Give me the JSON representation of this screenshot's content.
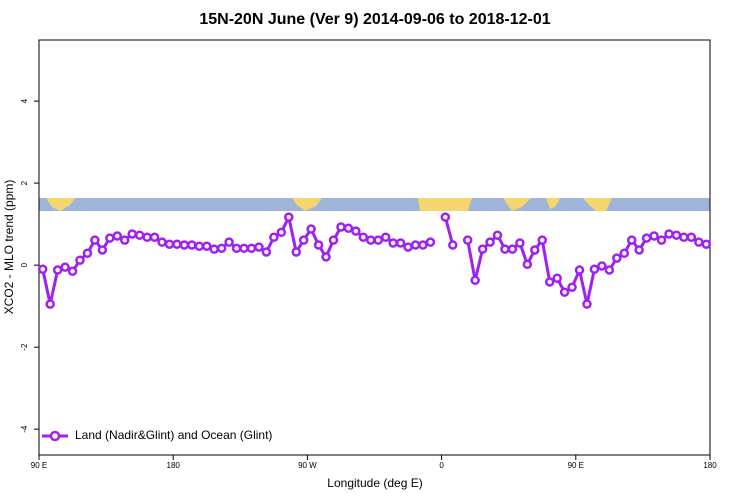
{
  "chart_data": {
    "type": "line",
    "title": "15N-20N June (Ver 9)   2014-09-06 to 2018-12-01",
    "x_label": "Longitude (deg E)",
    "y_label": "XCO2 - MLO trend (ppm)",
    "xlim": [
      90,
      540
    ],
    "ylim": [
      -4.63,
      5.49
    ],
    "xticks": [
      {
        "value": 90,
        "label": "90 E"
      },
      {
        "value": 180,
        "label": "180"
      },
      {
        "value": 270,
        "label": "90 W"
      },
      {
        "value": 360,
        "label": "0"
      },
      {
        "value": 450,
        "label": "90 E"
      },
      {
        "value": 540,
        "label": "180"
      }
    ],
    "yticks": [
      -4,
      -2,
      0,
      2,
      4
    ],
    "legend": "bottom-left",
    "x": [
      92.5,
      97.5,
      102.5,
      107.5,
      112.5,
      117.5,
      122.5,
      127.5,
      132.5,
      137.5,
      142.5,
      147.5,
      152.5,
      157.5,
      162.5,
      167.5,
      172.5,
      177.5,
      182.5,
      187.5,
      192.5,
      197.5,
      202.5,
      207.5,
      212.5,
      217.5,
      222.5,
      227.5,
      232.5,
      237.5,
      242.5,
      247.5,
      252.5,
      257.5,
      262.5,
      267.5,
      272.5,
      277.5,
      282.5,
      287.5,
      292.5,
      297.5,
      302.5,
      307.5,
      312.5,
      317.5,
      322.5,
      327.5,
      332.5,
      337.5,
      342.5,
      347.5,
      352.5,
      357.5,
      362.5,
      367.5,
      372.5,
      377.5,
      382.5,
      387.5,
      392.5,
      397.5,
      402.5,
      407.5,
      412.5,
      417.5,
      422.5,
      427.5,
      432.5,
      437.5,
      442.5,
      447.5,
      452.5,
      457.5,
      462.5,
      467.5,
      472.5,
      477.5,
      482.5,
      487.5,
      492.5,
      497.5,
      502.5,
      507.5,
      512.5,
      517.5,
      522.5,
      527.5,
      532.5,
      537.5
    ],
    "series": [
      {
        "name": "Land (Nadir&Glint) and Ocean (Glint)",
        "color": "#a020f0",
        "values": [
          -0.1,
          -0.95,
          -0.12,
          -0.05,
          -0.15,
          0.12,
          0.29,
          0.61,
          0.37,
          0.66,
          0.71,
          0.61,
          0.76,
          0.73,
          0.68,
          0.68,
          0.56,
          0.51,
          0.51,
          0.49,
          0.49,
          0.46,
          0.46,
          0.39,
          0.41,
          0.56,
          0.41,
          0.41,
          0.41,
          0.44,
          0.32,
          0.68,
          0.8,
          1.17,
          0.32,
          0.61,
          0.88,
          0.49,
          0.2,
          0.61,
          0.93,
          0.9,
          0.83,
          0.68,
          0.61,
          0.61,
          0.68,
          0.54,
          0.54,
          0.44,
          0.49,
          0.49,
          0.56,
          null,
          1.17,
          0.49,
          null,
          0.61,
          -0.37,
          0.39,
          0.56,
          0.73,
          0.39,
          0.39,
          0.54,
          0.02,
          0.37,
          0.61,
          -0.41,
          -0.32,
          -0.66,
          -0.54,
          -0.12,
          -0.95,
          -0.1,
          -0.02,
          -0.12,
          0.17,
          0.29,
          0.61,
          0.37,
          0.66,
          0.71,
          0.61,
          0.76,
          0.73,
          0.68,
          0.68,
          0.56,
          0.51
        ]
      }
    ]
  }
}
